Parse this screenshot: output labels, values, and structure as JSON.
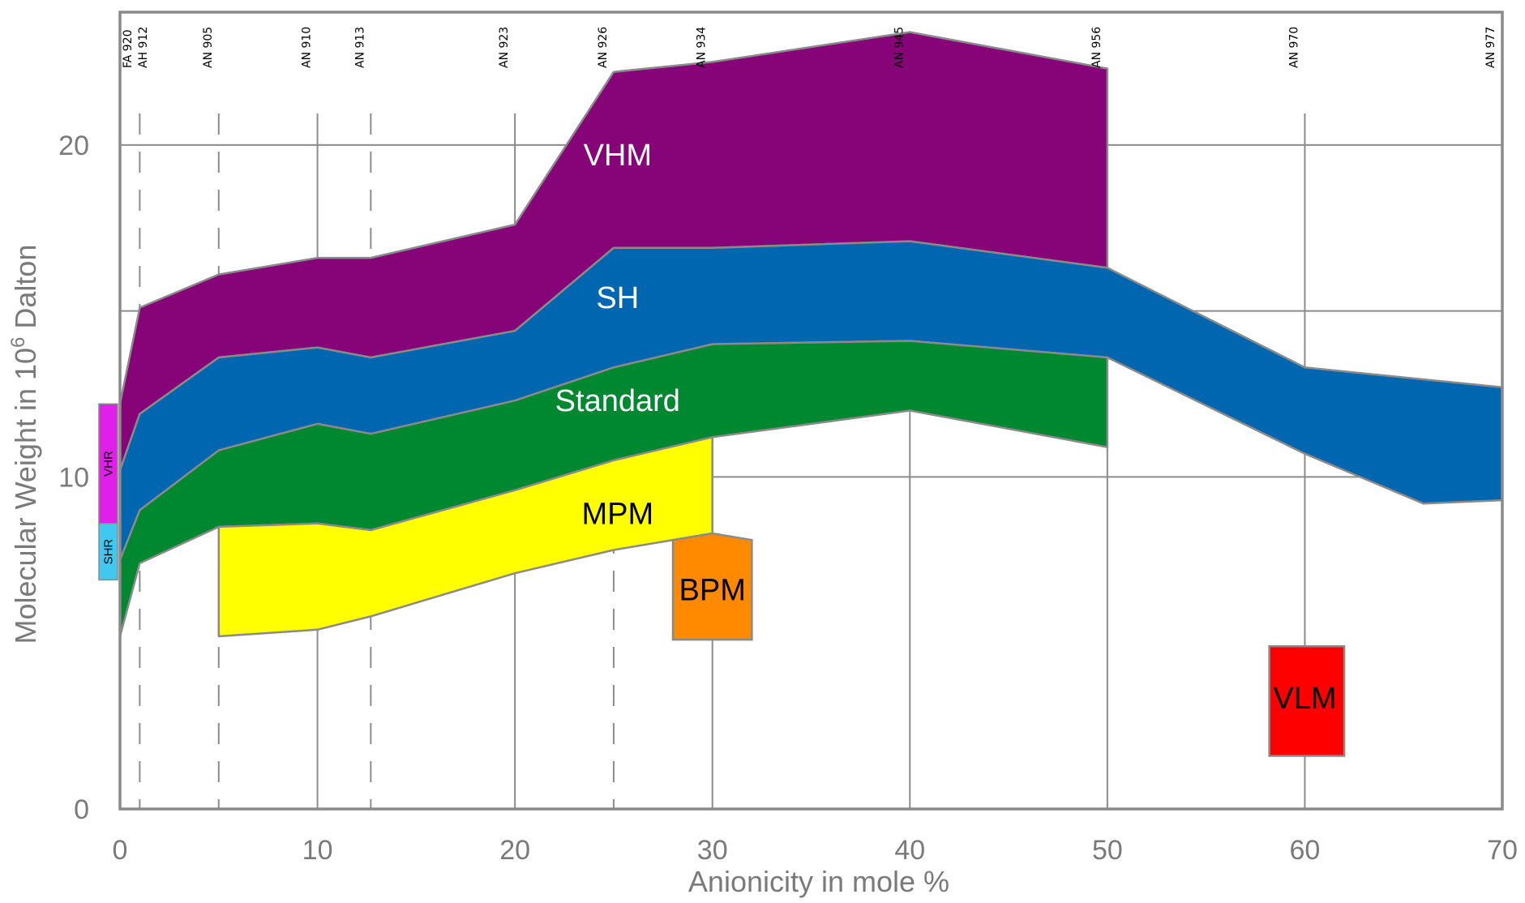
{
  "chart_data": {
    "type": "area",
    "xlabel": "Anionicity in mole %",
    "ylabel_main": "Molecular Weight in 10",
    "ylabel_sup": "6",
    "ylabel_end": " Dalton",
    "xlim": [
      0,
      70
    ],
    "ylim": [
      0,
      24
    ],
    "x_ticks": [
      0,
      10,
      20,
      30,
      40,
      50,
      60,
      70
    ],
    "y_ticks": [
      0,
      10,
      20
    ],
    "y_gridlines": [
      10,
      15,
      20
    ],
    "grades": [
      {
        "label": "FA 920",
        "x": 0.2,
        "style": "dashed"
      },
      {
        "label": "AH 912",
        "x": 1,
        "style": "dashed"
      },
      {
        "label": "AN 905",
        "x": 5,
        "style": "dashed"
      },
      {
        "label": "AN 910",
        "x": 10,
        "style": "solid"
      },
      {
        "label": "AN 913",
        "x": 12.7,
        "style": "dashed"
      },
      {
        "label": "AN 923",
        "x": 20,
        "style": "solid"
      },
      {
        "label": "AN 926",
        "x": 25,
        "style": "dashed"
      },
      {
        "label": "AN 934",
        "x": 30,
        "style": "solid"
      },
      {
        "label": "AN 945",
        "x": 40,
        "style": "solid"
      },
      {
        "label": "AN 956",
        "x": 50,
        "style": "solid"
      },
      {
        "label": "AN 970",
        "x": 60,
        "style": "solid"
      },
      {
        "label": "AN 977",
        "x": 70,
        "style": "solid"
      }
    ],
    "series": [
      {
        "name": "VHM",
        "color": "#860378",
        "label_color": "#ffffff",
        "label_at": [
          25.2,
          19.7
        ],
        "upper": [
          [
            0,
            12.2
          ],
          [
            1,
            15.1
          ],
          [
            5,
            16.1
          ],
          [
            10,
            16.6
          ],
          [
            12.7,
            16.6
          ],
          [
            20,
            17.6
          ],
          [
            25,
            22.2
          ],
          [
            30,
            22.5
          ],
          [
            40,
            23.4
          ],
          [
            50,
            22.3
          ]
        ],
        "lower": [
          [
            50,
            16.3
          ],
          [
            40,
            17.1
          ],
          [
            30,
            16.9
          ],
          [
            25,
            16.9
          ],
          [
            20,
            14.4
          ],
          [
            12.7,
            13.6
          ],
          [
            10,
            13.9
          ],
          [
            5,
            13.6
          ],
          [
            1,
            11.9
          ],
          [
            0,
            10.2
          ]
        ]
      },
      {
        "name": "SH",
        "color": "#0066b0",
        "label_color": "#ffffff",
        "label_at": [
          25.2,
          15.4
        ],
        "upper": [
          [
            0,
            10.2
          ],
          [
            1,
            11.9
          ],
          [
            5,
            13.6
          ],
          [
            10,
            13.9
          ],
          [
            12.7,
            13.6
          ],
          [
            20,
            14.4
          ],
          [
            25,
            16.9
          ],
          [
            30,
            16.9
          ],
          [
            40,
            17.1
          ],
          [
            50,
            16.3
          ],
          [
            60,
            13.3
          ],
          [
            70,
            12.7
          ]
        ],
        "lower": [
          [
            70,
            9.3
          ],
          [
            66,
            9.2
          ],
          [
            60,
            10.7
          ],
          [
            50,
            13.6
          ],
          [
            40,
            14.1
          ],
          [
            30,
            14.0
          ],
          [
            25,
            13.3
          ],
          [
            20,
            12.3
          ],
          [
            12.7,
            11.3
          ],
          [
            10,
            11.6
          ],
          [
            5,
            10.8
          ],
          [
            1,
            9.0
          ],
          [
            0,
            7.5
          ]
        ]
      },
      {
        "name": "Standard",
        "color": "#008830",
        "label_color": "#ffffff",
        "label_at": [
          25.2,
          12.3
        ],
        "upper": [
          [
            0,
            7.5
          ],
          [
            1,
            9.0
          ],
          [
            5,
            10.8
          ],
          [
            10,
            11.6
          ],
          [
            12.7,
            11.3
          ],
          [
            20,
            12.3
          ],
          [
            25,
            13.3
          ],
          [
            30,
            14.0
          ],
          [
            40,
            14.1
          ],
          [
            50,
            13.6
          ]
        ],
        "lower": [
          [
            50,
            10.9
          ],
          [
            40,
            12.0
          ],
          [
            30,
            11.2
          ],
          [
            25,
            10.5
          ],
          [
            20,
            9.6
          ],
          [
            12.7,
            8.4
          ],
          [
            10,
            8.6
          ],
          [
            5,
            8.5
          ],
          [
            1,
            7.4
          ],
          [
            0,
            5.2
          ]
        ]
      },
      {
        "name": "MPM",
        "color": "#ffff00",
        "label_color": "#000000",
        "label_at": [
          25.2,
          8.9
        ],
        "upper": [
          [
            5,
            8.5
          ],
          [
            10,
            8.6
          ],
          [
            12.7,
            8.4
          ],
          [
            20,
            9.6
          ],
          [
            25,
            10.5
          ],
          [
            30,
            11.2
          ],
          [
            30,
            8.3
          ]
        ],
        "lower": [
          [
            25,
            7.8
          ],
          [
            20,
            7.1
          ],
          [
            12.7,
            5.8
          ],
          [
            10,
            5.4
          ],
          [
            5,
            5.2
          ]
        ]
      }
    ],
    "boxes": [
      {
        "name": "BPM",
        "color": "#ff8a00",
        "font_size": 38,
        "points": [
          [
            28,
            8.1
          ],
          [
            30,
            8.3
          ],
          [
            32,
            8.1
          ],
          [
            32,
            5.1
          ],
          [
            28,
            5.1
          ]
        ],
        "label_at": [
          30,
          6.6
        ]
      },
      {
        "name": "VLM",
        "color": "#ff0000",
        "font_size": 38,
        "points": [
          [
            58.2,
            4.9
          ],
          [
            62,
            4.9
          ],
          [
            62,
            1.6
          ],
          [
            58.2,
            1.6
          ]
        ],
        "label_at": [
          60,
          3.35
        ]
      }
    ],
    "side_boxes": [
      {
        "name": "VHR",
        "color": "#e020e8",
        "y_top": 12.2,
        "y_bottom": 8.6
      },
      {
        "name": "SHR",
        "color": "#40c8f0",
        "y_top": 8.6,
        "y_bottom": 6.9
      }
    ]
  }
}
